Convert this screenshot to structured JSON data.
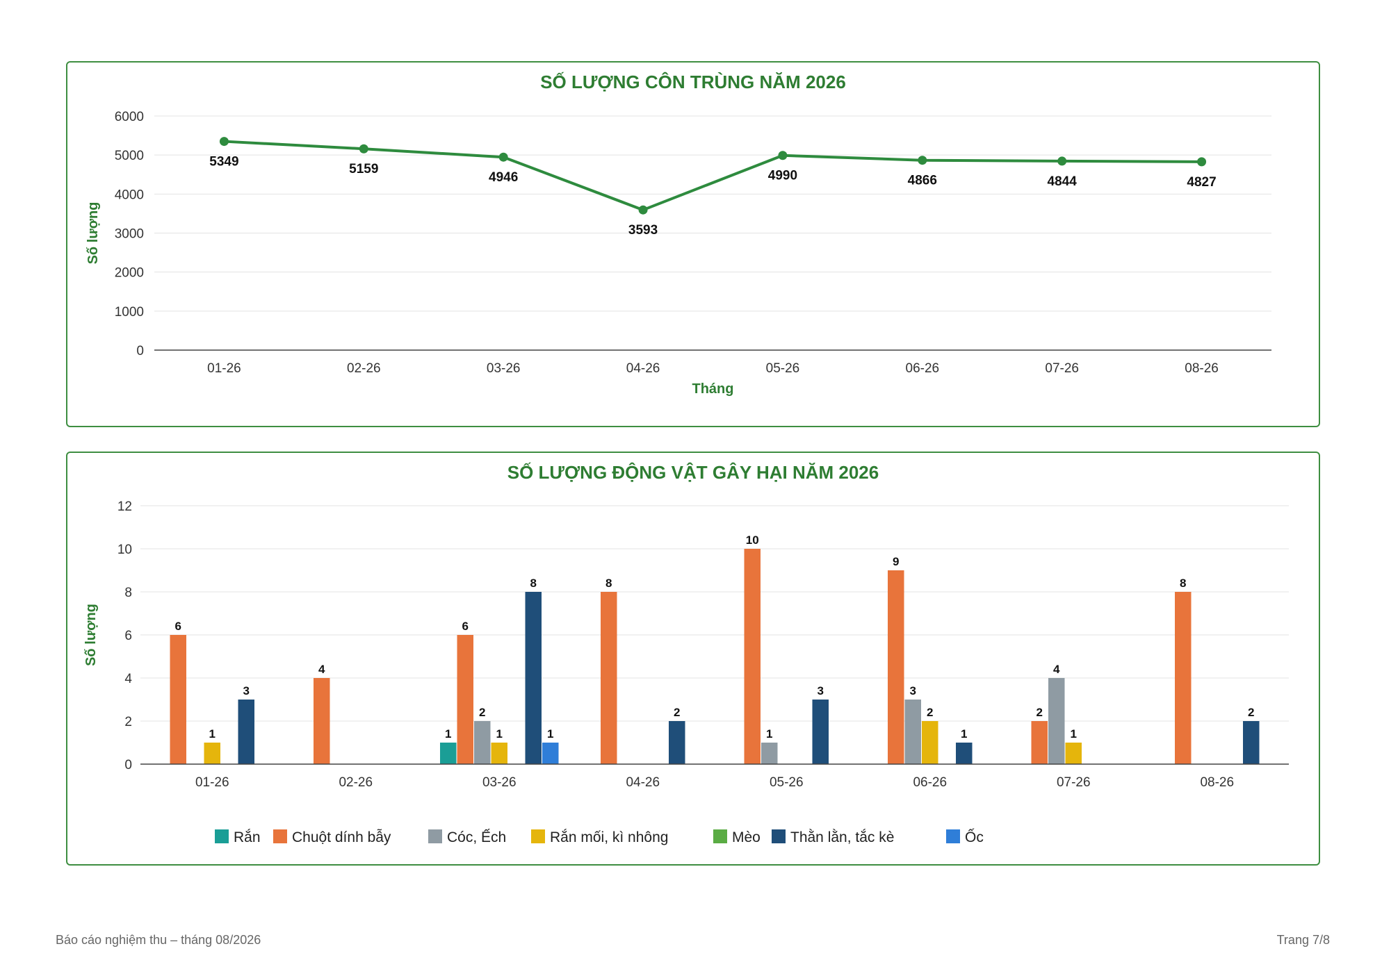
{
  "colors": {
    "frame": "#3e8e41",
    "title": "#2e7d32",
    "line": "#2e8b3e",
    "grid": "#e3e3e3",
    "axis": "#444444"
  },
  "chart_data": [
    {
      "type": "line",
      "title": "SỐ LƯỢNG CÔN TRÙNG NĂM 2026",
      "xlabel": "Tháng",
      "ylabel": "Số lượng",
      "categories": [
        "01-26",
        "02-26",
        "03-26",
        "04-26",
        "05-26",
        "06-26",
        "07-26",
        "08-26"
      ],
      "values": [
        5349,
        5159,
        4946,
        3593,
        4990,
        4866,
        4844,
        4827
      ],
      "ylim": [
        0,
        6000
      ],
      "yticks": [
        0,
        1000,
        2000,
        3000,
        4000,
        5000,
        6000
      ],
      "grid": true,
      "series_color": "#2e8b3e"
    },
    {
      "type": "bar",
      "title": "SỐ LƯỢNG ĐỘNG VẬT GÂY HẠI NĂM 2026",
      "xlabel": "",
      "ylabel": "Số lượng",
      "categories": [
        "01-26",
        "02-26",
        "03-26",
        "04-26",
        "05-26",
        "06-26",
        "07-26",
        "08-26"
      ],
      "ylim": [
        0,
        12
      ],
      "yticks": [
        0,
        2,
        4,
        6,
        8,
        10,
        12
      ],
      "grid": true,
      "legend_position": "bottom",
      "series": [
        {
          "name": "Rắn",
          "color": "#1a9e96",
          "values": [
            0,
            0,
            1,
            0,
            0,
            0,
            0,
            0
          ]
        },
        {
          "name": "Chuột dính bẫy",
          "color": "#e8743b",
          "values": [
            6,
            4,
            6,
            8,
            10,
            9,
            2,
            8
          ]
        },
        {
          "name": "Cóc, Ếch",
          "color": "#8f9ba3",
          "values": [
            0,
            0,
            2,
            0,
            1,
            3,
            4,
            0
          ]
        },
        {
          "name": "Rắn mối, kì nhông",
          "color": "#e5b50c",
          "values": [
            1,
            0,
            1,
            0,
            0,
            2,
            1,
            0
          ]
        },
        {
          "name": "Mèo",
          "color": "#5aac44",
          "values": [
            0,
            0,
            0,
            0,
            0,
            0,
            0,
            0
          ]
        },
        {
          "name": "Thằn lằn, tắc kè",
          "color": "#1f4e79",
          "values": [
            3,
            0,
            8,
            2,
            3,
            1,
            0,
            2
          ]
        },
        {
          "name": "Ốc",
          "color": "#2f7ed8",
          "values": [
            0,
            0,
            1,
            0,
            0,
            0,
            0,
            0
          ]
        }
      ]
    }
  ],
  "footer": {
    "left": "Báo cáo nghiệm thu – tháng 08/2026",
    "right": "Trang 7/8"
  }
}
